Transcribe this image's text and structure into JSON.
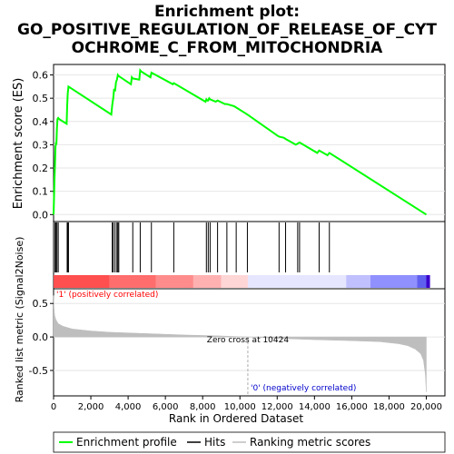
{
  "chart_data": [
    {
      "type": "line",
      "panel": "enrichment",
      "title_lines": [
        "Enrichment plot:",
        "GO_POSITIVE_REGULATION_OF_RELEASE_OF_CYT",
        "OCHROME_C_FROM_MITOCHONDRIA"
      ],
      "ylabel": "Enrichment score (ES)",
      "xlim": [
        0,
        21000
      ],
      "ylim": [
        -0.03,
        0.645
      ],
      "yticks": [
        0.0,
        0.1,
        0.2,
        0.3,
        0.4,
        0.5,
        0.6
      ],
      "ytick_labels": [
        "0.0",
        "0.1",
        "0.2",
        "0.3",
        "0.4",
        "0.5",
        "0.6"
      ],
      "grid": true,
      "line_color": "#00ff00",
      "series": [
        {
          "name": "Enrichment profile",
          "x": [
            0,
            50,
            80,
            100,
            130,
            150,
            180,
            210,
            250,
            300,
            700,
            730,
            760,
            800,
            3100,
            3150,
            3200,
            3250,
            3300,
            3350,
            3400,
            3450,
            3500,
            4150,
            4200,
            4250,
            4600,
            4650,
            4700,
            5200,
            5250,
            6400,
            6450,
            8150,
            8200,
            8250,
            8300,
            8350,
            8400,
            8700,
            8800,
            9200,
            9300,
            9700,
            9800,
            10300,
            10400,
            12000,
            12100,
            12350,
            12450,
            13000,
            13100,
            13200,
            13300,
            14150,
            14250,
            14700,
            14800,
            20000
          ],
          "y": [
            0.0,
            0.15,
            0.22,
            0.29,
            0.31,
            0.3,
            0.37,
            0.41,
            0.415,
            0.41,
            0.39,
            0.47,
            0.52,
            0.55,
            0.43,
            0.47,
            0.5,
            0.54,
            0.53,
            0.57,
            0.58,
            0.6,
            0.595,
            0.56,
            0.59,
            0.585,
            0.58,
            0.62,
            0.615,
            0.59,
            0.61,
            0.56,
            0.565,
            0.485,
            0.495,
            0.49,
            0.49,
            0.5,
            0.495,
            0.485,
            0.49,
            0.475,
            0.475,
            0.465,
            0.46,
            0.435,
            0.43,
            0.34,
            0.335,
            0.33,
            0.325,
            0.3,
            0.305,
            0.31,
            0.305,
            0.265,
            0.275,
            0.255,
            0.265,
            0.0
          ]
        }
      ]
    },
    {
      "type": "scatter",
      "panel": "hits",
      "marker": "vertical-line",
      "xlim": [
        0,
        21000
      ],
      "series": [
        {
          "name": "Hits",
          "x": [
            80,
            130,
            180,
            250,
            730,
            760,
            800,
            3150,
            3200,
            3300,
            3400,
            3450,
            3500,
            4250,
            4650,
            5250,
            6450,
            8200,
            8300,
            8400,
            8800,
            9300,
            9800,
            10400,
            12100,
            12450,
            13100,
            13200,
            14250,
            14800
          ]
        }
      ],
      "colorbar": {
        "colors": [
          "#ff4f4f",
          "#ff6d6d",
          "#ff8c8c",
          "#ffb1b1",
          "#ffd6d6",
          "#e6e6ff",
          "#c0c0ff",
          "#9090ff",
          "#6060ee",
          "#3a00cc"
        ],
        "boundaries": [
          0,
          3000,
          5500,
          7500,
          9000,
          10424,
          15700,
          17000,
          19500,
          20000,
          20200
        ],
        "left_label": "'1' (positively correlated)",
        "left_label_color": "#ff0000",
        "right_label": "'0' (negatively correlated)",
        "right_label_color": "#0000cc"
      }
    },
    {
      "type": "area",
      "panel": "ranking",
      "ylabel": "Ranked list metric (Signal2Noise)",
      "xlabel": "Rank in Ordered Dataset",
      "xlim": [
        0,
        21000
      ],
      "ylim": [
        -0.88,
        0.72
      ],
      "yticks": [
        -0.5,
        0.0,
        0.5
      ],
      "ytick_labels": [
        "-0.5",
        "0.0",
        "0.5"
      ],
      "xticks": [
        0,
        2000,
        4000,
        6000,
        8000,
        10000,
        12000,
        14000,
        16000,
        18000,
        20000
      ],
      "xtick_labels": [
        "0",
        "2,000",
        "4,000",
        "6,000",
        "8,000",
        "10,000",
        "12,000",
        "14,000",
        "16,000",
        "18,000",
        "20,000"
      ],
      "grid": true,
      "fill_color": "#bebebe",
      "zero_cross": 10424,
      "zero_cross_label": "Zero cross at 10424",
      "series": [
        {
          "name": "Ranking metric scores",
          "x": [
            0,
            20,
            60,
            120,
            250,
            500,
            1000,
            2000,
            3000,
            5000,
            7000,
            9000,
            10424,
            12000,
            14000,
            16000,
            17500,
            18500,
            19000,
            19400,
            19700,
            19850,
            19950,
            20000
          ],
          "y": [
            0.62,
            0.45,
            0.32,
            0.26,
            0.2,
            0.16,
            0.12,
            0.09,
            0.07,
            0.05,
            0.03,
            0.015,
            0.0,
            -0.02,
            -0.04,
            -0.055,
            -0.07,
            -0.1,
            -0.13,
            -0.18,
            -0.25,
            -0.35,
            -0.55,
            -0.82
          ]
        }
      ]
    }
  ],
  "legend": {
    "items": [
      {
        "label": "Enrichment profile",
        "color": "#00ff00"
      },
      {
        "label": "Hits",
        "color": "#000000"
      },
      {
        "label": "Ranking metric scores",
        "color": "#bebebe"
      }
    ]
  }
}
